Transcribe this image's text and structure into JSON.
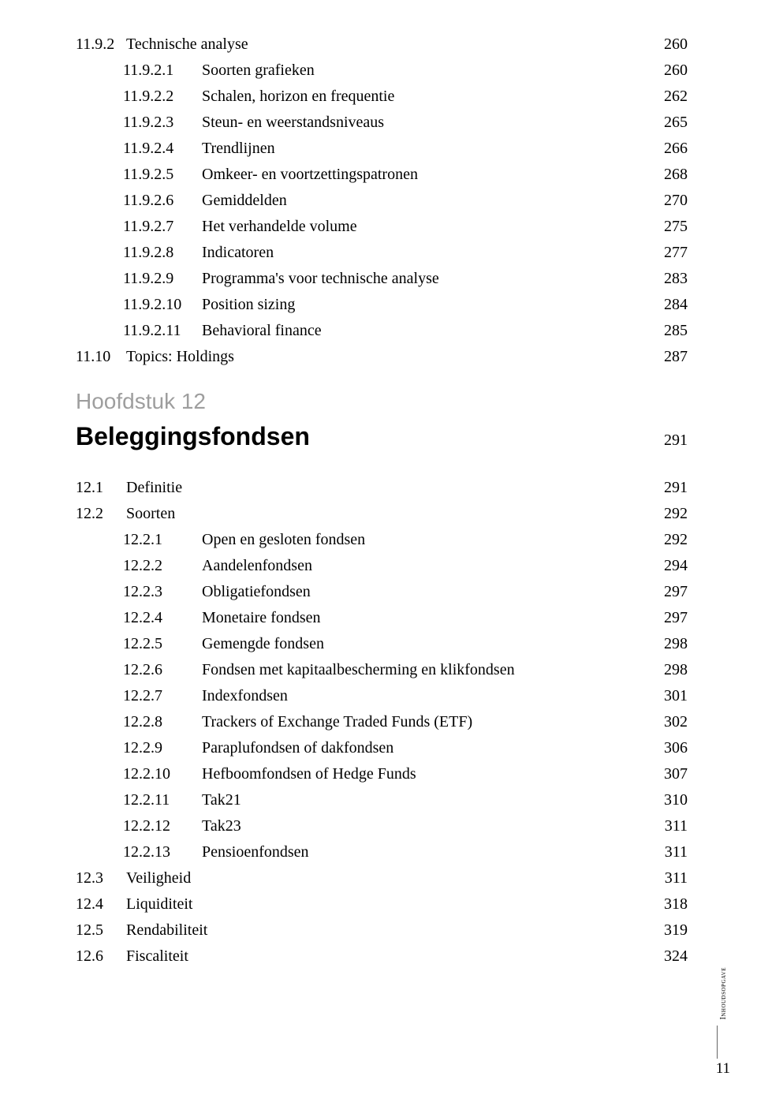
{
  "top": [
    {
      "indent": 0,
      "num": "11.9.2",
      "label": "Technische analyse",
      "page": "260"
    },
    {
      "indent": 1,
      "num": "11.9.2.1",
      "label": "Soorten grafieken",
      "page": "260"
    },
    {
      "indent": 1,
      "num": "11.9.2.2",
      "label": "Schalen, horizon en frequentie",
      "page": "262"
    },
    {
      "indent": 1,
      "num": "11.9.2.3",
      "label": "Steun- en weerstandsniveaus",
      "page": "265"
    },
    {
      "indent": 1,
      "num": "11.9.2.4",
      "label": "Trendlijnen",
      "page": "266"
    },
    {
      "indent": 1,
      "num": "11.9.2.5",
      "label": "Omkeer- en voortzettingspatronen",
      "page": "268"
    },
    {
      "indent": 1,
      "num": "11.9.2.6",
      "label": "Gemiddelden",
      "page": "270"
    },
    {
      "indent": 1,
      "num": "11.9.2.7",
      "label": "Het verhandelde volume",
      "page": "275"
    },
    {
      "indent": 1,
      "num": "11.9.2.8",
      "label": "Indicatoren",
      "page": "277"
    },
    {
      "indent": 1,
      "num": "11.9.2.9",
      "label": "Programma's voor technische analyse",
      "page": "283"
    },
    {
      "indent": 1,
      "num": "11.9.2.10",
      "label": "Position sizing",
      "page": "284"
    },
    {
      "indent": 1,
      "num": "11.9.2.11",
      "label": "Behavioral finance",
      "page": "285"
    },
    {
      "indent": 0,
      "num": "11.10",
      "label": "Topics: Holdings",
      "page": "287"
    }
  ],
  "chapter": {
    "label": "Hoofdstuk 12",
    "title": "Beleggingsfondsen",
    "page": "291"
  },
  "bottom": [
    {
      "indent": 0,
      "num": "12.1",
      "label": "Definitie",
      "page": "291"
    },
    {
      "indent": 0,
      "num": "12.2",
      "label": "Soorten",
      "page": "292"
    },
    {
      "indent": 1,
      "num": "12.2.1",
      "label": "Open en gesloten fondsen",
      "page": "292"
    },
    {
      "indent": 1,
      "num": "12.2.2",
      "label": "Aandelenfondsen",
      "page": "294"
    },
    {
      "indent": 1,
      "num": "12.2.3",
      "label": "Obligatiefondsen",
      "page": "297"
    },
    {
      "indent": 1,
      "num": "12.2.4",
      "label": "Monetaire fondsen",
      "page": "297"
    },
    {
      "indent": 1,
      "num": "12.2.5",
      "label": "Gemengde fondsen",
      "page": "298"
    },
    {
      "indent": 1,
      "num": "12.2.6",
      "label": "Fondsen met kapitaalbescherming en klikfondsen",
      "page": "298"
    },
    {
      "indent": 1,
      "num": "12.2.7",
      "label": "Indexfondsen",
      "page": "301"
    },
    {
      "indent": 1,
      "num": "12.2.8",
      "label": "Trackers of Exchange Traded Funds (ETF)",
      "page": "302"
    },
    {
      "indent": 1,
      "num": "12.2.9",
      "label": "Paraplufondsen of dakfondsen",
      "page": "306"
    },
    {
      "indent": 1,
      "num": "12.2.10",
      "label": "Hefboomfondsen of Hedge Funds",
      "page": "307"
    },
    {
      "indent": 1,
      "num": "12.2.11",
      "label": "Tak21",
      "page": "310"
    },
    {
      "indent": 1,
      "num": "12.2.12",
      "label": "Tak23",
      "page": "311"
    },
    {
      "indent": 1,
      "num": "12.2.13",
      "label": "Pensioenfondsen",
      "page": "311"
    },
    {
      "indent": 0,
      "num": "12.3",
      "label": "Veiligheid",
      "page": "311"
    },
    {
      "indent": 0,
      "num": "12.4",
      "label": "Liquiditeit",
      "page": "318"
    },
    {
      "indent": 0,
      "num": "12.5",
      "label": "Rendabiliteit",
      "page": "319"
    },
    {
      "indent": 0,
      "num": "12.6",
      "label": "Fiscaliteit",
      "page": "324"
    }
  ],
  "footer": {
    "sideLabel": "Inhoudsopgave",
    "pageNumber": "11"
  }
}
